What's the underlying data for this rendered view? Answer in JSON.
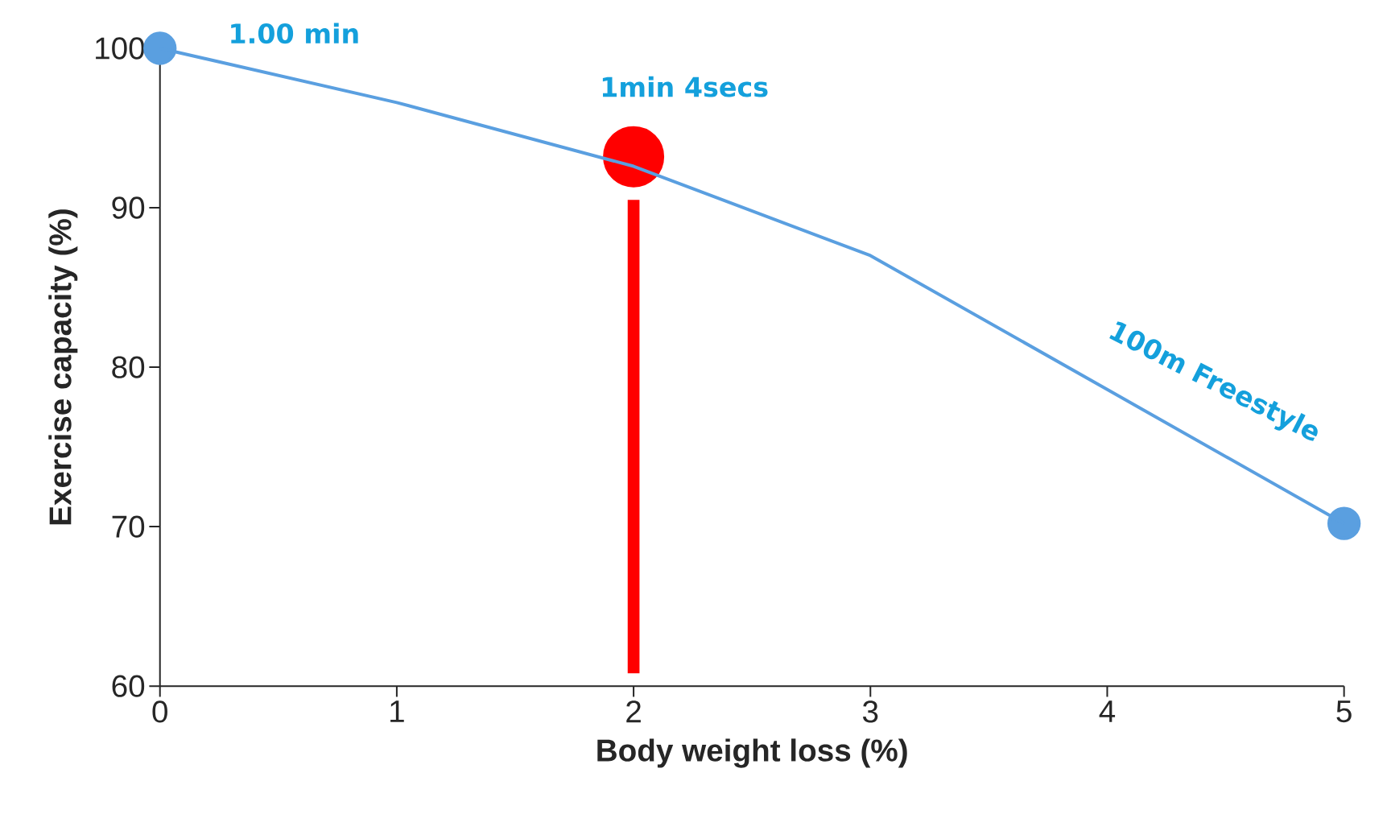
{
  "chart_data": {
    "type": "line",
    "xlabel": "Body weight loss (%)",
    "ylabel": "Exercise capacity (%)",
    "x": [
      0,
      1,
      2,
      3,
      4,
      5
    ],
    "xlim": [
      0,
      5
    ],
    "ylim": [
      60,
      100
    ],
    "xticks": [
      0,
      1,
      2,
      3,
      4,
      5
    ],
    "yticks": [
      60,
      70,
      80,
      90,
      100
    ],
    "grid": false,
    "series": [
      {
        "color": "#5a9fe0",
        "values": [
          100,
          96.6,
          92.6,
          87.0,
          78.6,
          70.2
        ],
        "marker": "none"
      },
      {
        "type": "scatter",
        "color": "#5a9fe0",
        "x": [
          0,
          5
        ],
        "values": [
          100,
          70.2
        ],
        "marker": "circle"
      },
      {
        "type": "line",
        "color": "#ff0000",
        "x": [
          2,
          2
        ],
        "values": [
          60.8,
          90.5
        ],
        "marker": "none"
      },
      {
        "type": "scatter",
        "color": "#ff0000",
        "x": [
          2
        ],
        "values": [
          93.2
        ],
        "marker": "circle"
      }
    ],
    "annotations": [
      {
        "text": "1.00 min",
        "x": 0,
        "y": 100
      },
      {
        "text": "1min 4secs",
        "x": 2,
        "y": 93.2
      },
      "100m Freestyle"
    ]
  }
}
